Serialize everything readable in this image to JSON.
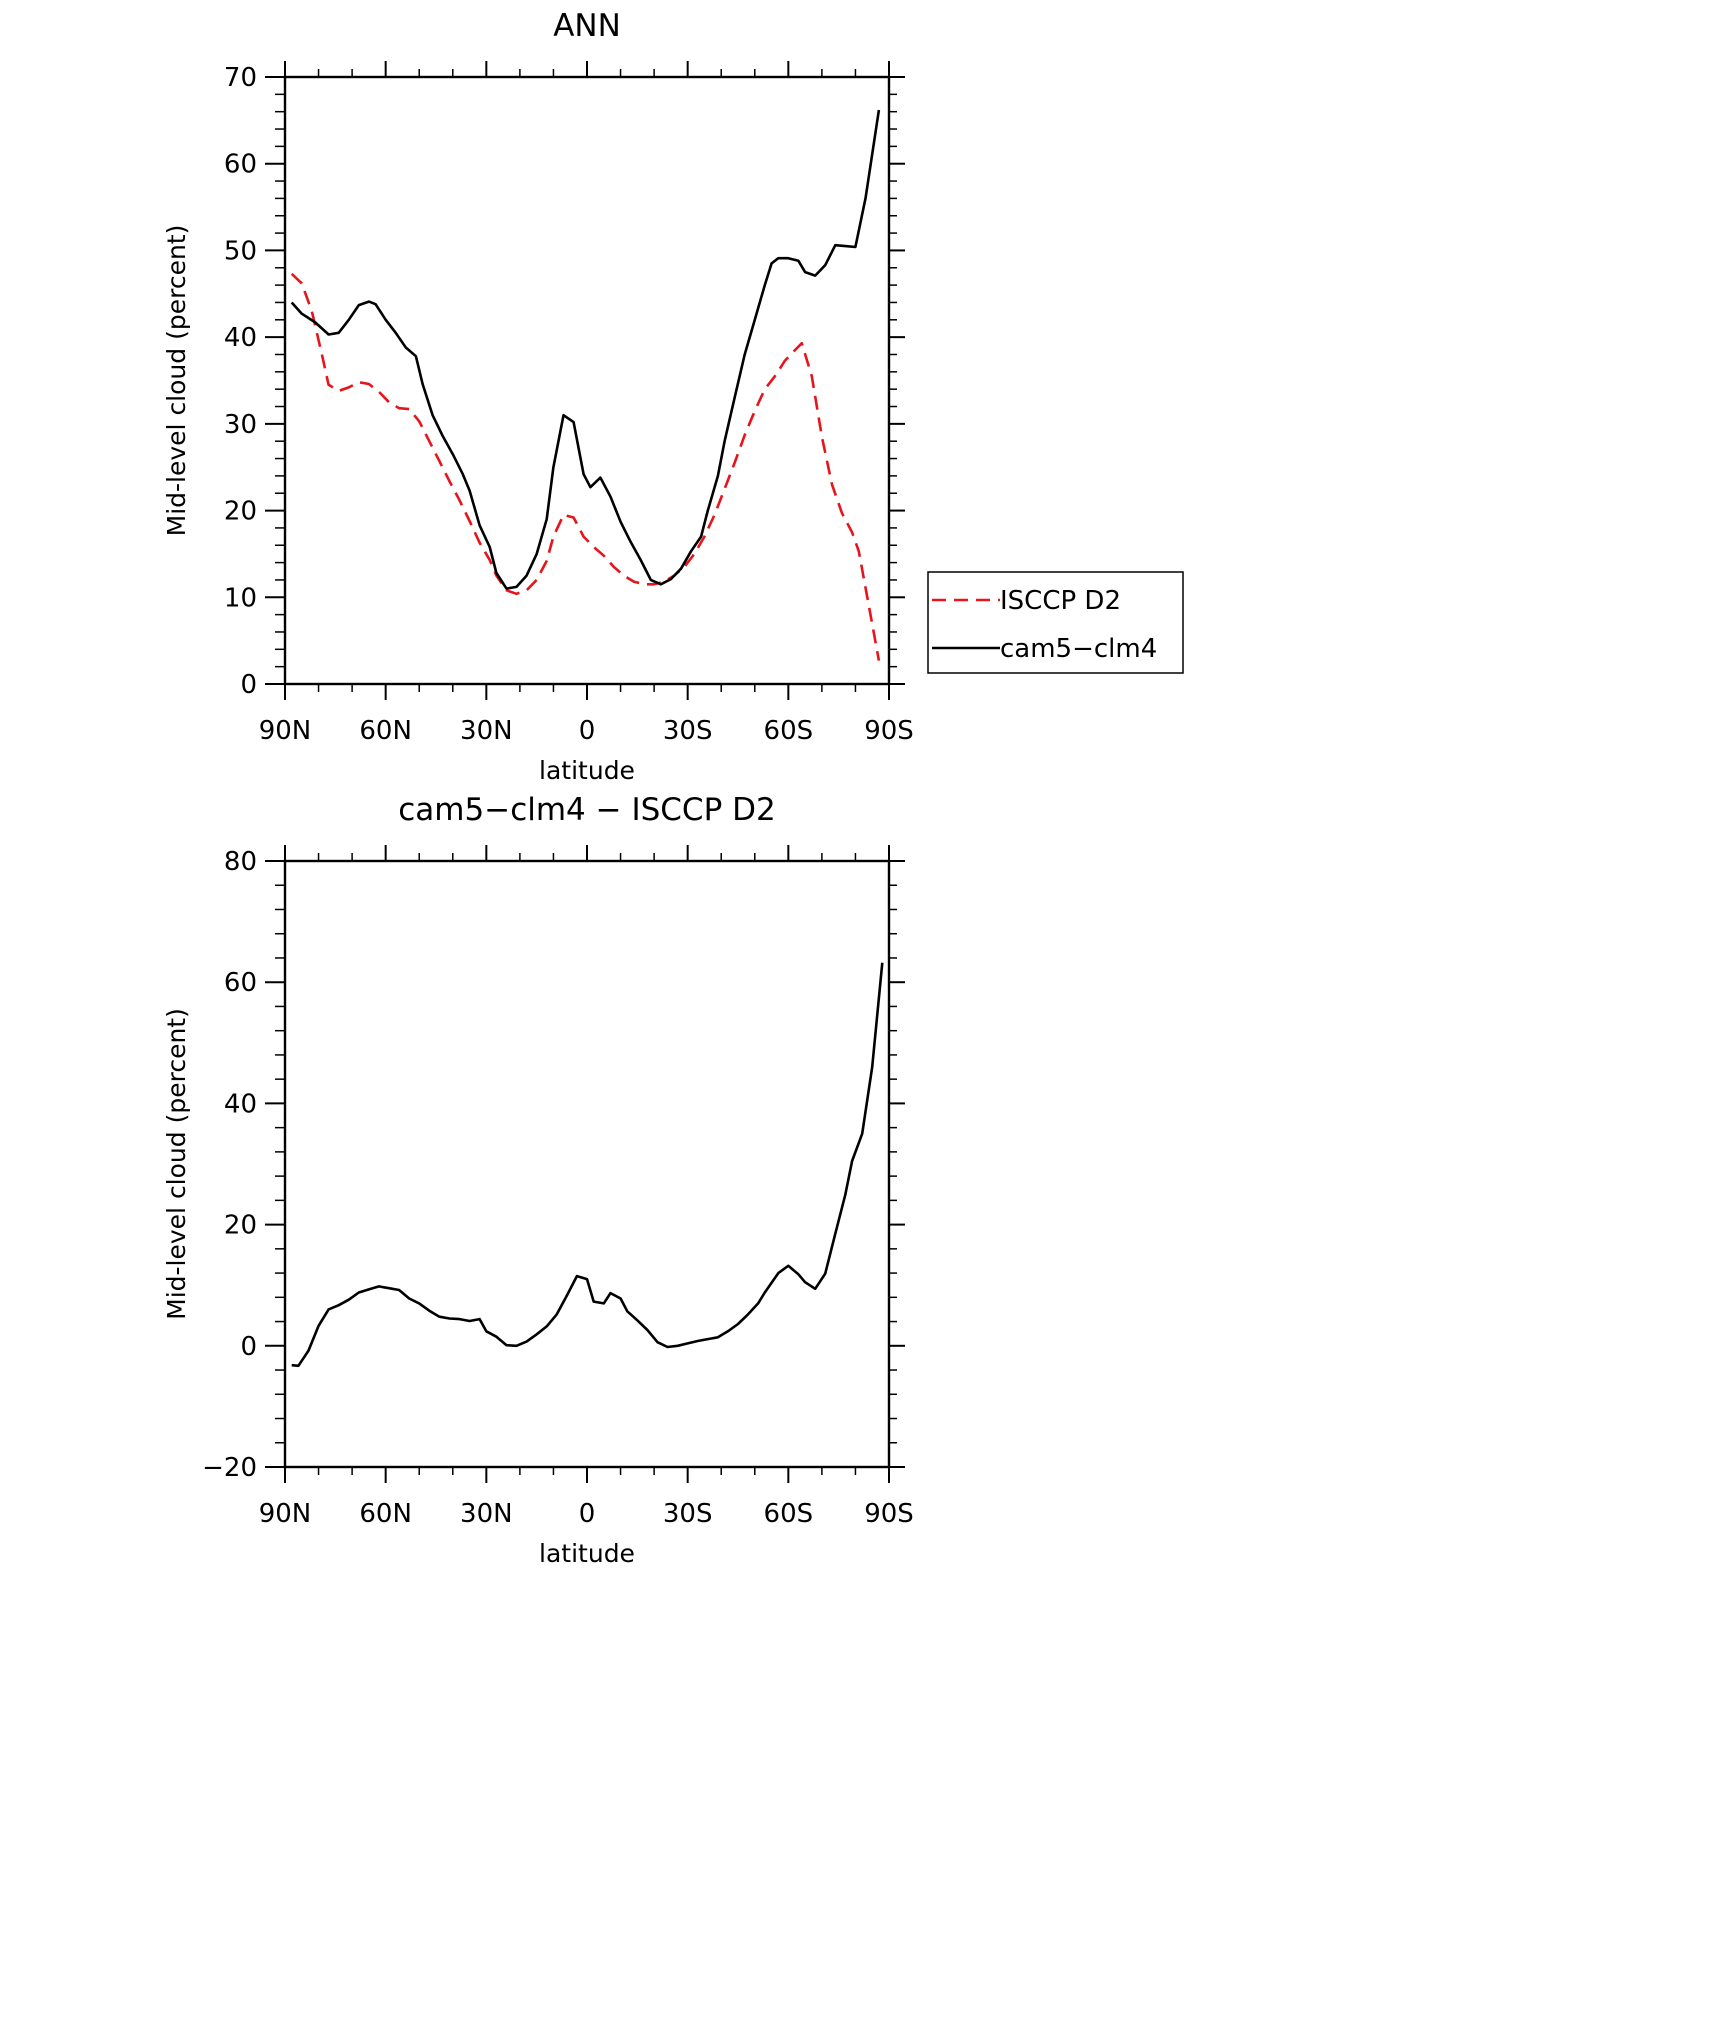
{
  "chart_data": [
    {
      "type": "line",
      "title": "ANN",
      "xlabel": "latitude",
      "ylabel": "Mid-level cloud (percent)",
      "xlim": [
        90,
        -90
      ],
      "xticks": [
        {
          "value": 90,
          "label": "90N"
        },
        {
          "value": 60,
          "label": "60N"
        },
        {
          "value": 30,
          "label": "30N"
        },
        0,
        {
          "value": -30,
          "label": "30S"
        },
        {
          "value": -60,
          "label": "60S"
        },
        {
          "value": -90,
          "label": "90S"
        }
      ],
      "ylim": [
        0,
        70
      ],
      "yticks": [
        0,
        10,
        20,
        30,
        40,
        50,
        60,
        70
      ],
      "legend": "right",
      "series": [
        {
          "name": "ISCCP D2",
          "color": "#e8141c",
          "dashed": true,
          "x": [
            88,
            85,
            82,
            79,
            77,
            74,
            71,
            68,
            65,
            62,
            59,
            56,
            53,
            50,
            47,
            44,
            41,
            38,
            35,
            32,
            29,
            27,
            24,
            21,
            18,
            15,
            12,
            10,
            7,
            4,
            1,
            -2,
            -5,
            -8,
            -11,
            -14,
            -17,
            -20,
            -23,
            -26,
            -29,
            -32,
            -35,
            -38,
            -41,
            -44,
            -47,
            -50,
            -53,
            -56,
            -59,
            -62,
            -64,
            -67,
            -70,
            -73,
            -76,
            -79,
            -81,
            -84,
            -87
          ],
          "values": [
            47.3,
            46.2,
            43,
            38,
            34.5,
            33.8,
            34.2,
            34.8,
            34.6,
            33.7,
            32.5,
            31.8,
            31.7,
            30.3,
            28,
            25.7,
            23.4,
            21.2,
            18.8,
            16.3,
            14.3,
            12.5,
            10.8,
            10.4,
            10.8,
            12,
            14.2,
            17,
            19.5,
            19.2,
            17,
            15.8,
            14.8,
            13.5,
            12.5,
            11.8,
            11.5,
            11.5,
            11.8,
            12.5,
            13.5,
            15,
            17,
            19.5,
            22.5,
            25.5,
            28.7,
            31.5,
            34,
            35.5,
            37.3,
            38.5,
            39.3,
            35.5,
            28.5,
            23,
            19.7,
            17.5,
            15.3,
            9,
            2.7
          ]
        },
        {
          "name": "cam5−clm4",
          "color": "#000000",
          "dashed": false,
          "x": [
            88,
            85,
            81,
            77,
            74,
            71,
            68,
            65,
            63,
            60,
            57,
            54,
            51,
            49,
            46,
            43,
            40,
            37,
            35,
            32,
            29,
            27,
            24,
            21,
            18,
            15,
            12,
            10,
            7,
            4,
            1,
            -1,
            -4,
            -7,
            -10,
            -13,
            -16,
            -19,
            -22,
            -25,
            -28,
            -31,
            -34,
            -36,
            -39,
            -41,
            -44,
            -47,
            -50,
            -53,
            -55,
            -57,
            -60,
            -63,
            -65,
            -68,
            -71,
            -74,
            -77,
            -80,
            -83,
            -87
          ],
          "values": [
            44,
            42.7,
            41.7,
            40.3,
            40.5,
            42,
            43.7,
            44.1,
            43.8,
            42,
            40.5,
            38.8,
            37.8,
            34.6,
            31,
            28.6,
            26.5,
            24.2,
            22.3,
            18.3,
            15.8,
            12.8,
            11,
            11.2,
            12.5,
            15,
            19,
            25,
            31,
            30.2,
            24.2,
            22.7,
            23.8,
            21.6,
            18.7,
            16.4,
            14.3,
            12,
            11.5,
            12.1,
            13.3,
            15.3,
            17,
            20,
            24,
            28,
            33,
            38,
            42,
            46,
            48.5,
            49.1,
            49.1,
            48.8,
            47.5,
            47.1,
            48.3,
            50.6,
            50.5,
            50.4,
            56,
            66.2
          ]
        }
      ]
    },
    {
      "type": "line",
      "title": "cam5−clm4 − ISCCP D2",
      "xlabel": "latitude",
      "ylabel": "Mid-level cloud (percent)",
      "xlim": [
        90,
        -90
      ],
      "xticks": [
        {
          "value": 90,
          "label": "90N"
        },
        {
          "value": 60,
          "label": "60N"
        },
        {
          "value": 30,
          "label": "30N"
        },
        0,
        {
          "value": -30,
          "label": "30S"
        },
        {
          "value": -60,
          "label": "60S"
        },
        {
          "value": -90,
          "label": "90S"
        }
      ],
      "ylim": [
        -20,
        80
      ],
      "yticks": [
        {
          "value": -20,
          "label": "−20"
        },
        0,
        20,
        40,
        60,
        80
      ],
      "series": [
        {
          "color": "#000000",
          "dashed": false,
          "x": [
            88,
            86,
            83,
            80,
            77,
            74,
            71,
            68,
            65,
            62,
            59,
            56,
            53,
            50,
            47,
            44,
            41,
            38,
            35,
            32,
            30,
            27,
            24,
            21,
            18,
            15,
            12,
            9,
            6,
            3,
            0,
            -2,
            -5,
            -7,
            -10,
            -12,
            -15,
            -18,
            -21,
            -24,
            -27,
            -30,
            -33,
            -36,
            -39,
            -42,
            -45,
            -48,
            -51,
            -53,
            -55,
            -57,
            -60,
            -63,
            -65,
            -68,
            -71,
            -74,
            -77,
            -79,
            -82,
            -85,
            -88
          ],
          "values": [
            -3.2,
            -3.3,
            -0.8,
            3.3,
            6,
            6.7,
            7.6,
            8.8,
            9.3,
            9.8,
            9.5,
            9.2,
            7.8,
            7,
            5.8,
            4.8,
            4.5,
            4.4,
            4.1,
            4.4,
            2.4,
            1.5,
            0.1,
            0,
            0.7,
            1.9,
            3.2,
            5.2,
            8.3,
            11.5,
            11,
            7.3,
            7,
            8.7,
            7.8,
            5.7,
            4.2,
            2.6,
            0.6,
            -0.2,
            0,
            0.4,
            0.8,
            1.1,
            1.4,
            2.4,
            3.6,
            5.2,
            7,
            8.8,
            10.4,
            12,
            13.2,
            11.8,
            10.5,
            9.4,
            11.9,
            18.5,
            25,
            30.5,
            35,
            46,
            63.2
          ]
        }
      ]
    }
  ]
}
